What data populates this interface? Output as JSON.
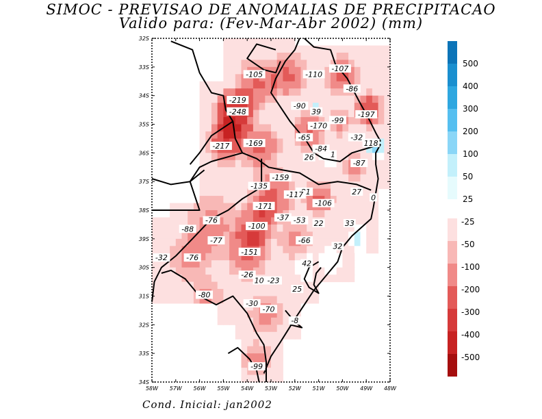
{
  "title_line1": "SIMOC - PREVISAO DE ANOMALIAS DE PRECIPITACAO",
  "title_line2": "Valido para: (Fev-Mar-Abr 2002) (mm)",
  "footer": "Cond. Inicial: jan2002",
  "lat_labels": [
    "32S",
    "33S",
    "34S",
    "35S",
    "36S",
    "37S",
    "38S",
    "39S",
    "30S",
    "31S",
    "32S",
    "33S",
    "34S"
  ],
  "lon_labels": [
    "58W",
    "57W",
    "56W",
    "55W",
    "54W",
    "53W",
    "52W",
    "51W",
    "50W",
    "49W",
    "48W"
  ],
  "colorbar_positive": [
    "500",
    "400",
    "300",
    "200",
    "100",
    "50",
    "25"
  ],
  "colorbar_negative": [
    "-25",
    "-50",
    "-100",
    "-200",
    "-300",
    "-400",
    "-500"
  ],
  "colors": {
    "pos": [
      "#0c74b8",
      "#1a8fcf",
      "#2ea7e0",
      "#55bff0",
      "#8ad6f7",
      "#c3f0fb"
    ],
    "neg": [
      "#fde0e0",
      "#f8b8b6",
      "#f08a88",
      "#e35a58",
      "#d63a3a",
      "#c72222",
      "#a50e0e"
    ]
  },
  "values": [
    {
      "text": "-105",
      "lon": 53.7,
      "lat": 23.3
    },
    {
      "text": "-110",
      "lon": 51.2,
      "lat": 23.3
    },
    {
      "text": "-107",
      "lon": 50.1,
      "lat": 23.1
    },
    {
      "text": "-86",
      "lon": 49.6,
      "lat": 23.8
    },
    {
      "text": "-219",
      "lon": 54.4,
      "lat": 24.2
    },
    {
      "text": "-248",
      "lon": 54.4,
      "lat": 24.6
    },
    {
      "text": "-90",
      "lon": 51.8,
      "lat": 24.4
    },
    {
      "text": "39",
      "lon": 51.1,
      "lat": 24.6
    },
    {
      "text": "-197",
      "lon": 49.0,
      "lat": 24.7
    },
    {
      "text": "-99",
      "lon": 50.2,
      "lat": 24.9
    },
    {
      "text": "-170",
      "lon": 51.0,
      "lat": 25.1
    },
    {
      "text": "-65",
      "lon": 51.6,
      "lat": 25.5
    },
    {
      "text": "-32",
      "lon": 49.4,
      "lat": 25.5
    },
    {
      "text": "118",
      "lon": 48.8,
      "lat": 25.7
    },
    {
      "text": "-217",
      "lon": 55.1,
      "lat": 25.8
    },
    {
      "text": "-169",
      "lon": 53.7,
      "lat": 25.7
    },
    {
      "text": "-84",
      "lon": 50.9,
      "lat": 25.9
    },
    {
      "text": "26",
      "lon": 51.4,
      "lat": 26.2
    },
    {
      "text": "1",
      "lon": 50.4,
      "lat": 26.1
    },
    {
      "text": "-87",
      "lon": 49.3,
      "lat": 26.4
    },
    {
      "text": "-159",
      "lon": 52.6,
      "lat": 26.9
    },
    {
      "text": "-135",
      "lon": 53.5,
      "lat": 27.2
    },
    {
      "text": "-81",
      "lon": 51.6,
      "lat": 27.4
    },
    {
      "text": "-117",
      "lon": 52.0,
      "lat": 27.5
    },
    {
      "text": "27",
      "lon": 49.4,
      "lat": 27.4
    },
    {
      "text": "0",
      "lon": 48.7,
      "lat": 27.6
    },
    {
      "text": "-106",
      "lon": 50.8,
      "lat": 27.8
    },
    {
      "text": "-171",
      "lon": 53.3,
      "lat": 27.9
    },
    {
      "text": "-76",
      "lon": 55.5,
      "lat": 28.4
    },
    {
      "text": "-37",
      "lon": 52.5,
      "lat": 28.3
    },
    {
      "text": "-53",
      "lon": 51.8,
      "lat": 28.4
    },
    {
      "text": "22",
      "lon": 51.0,
      "lat": 28.5
    },
    {
      "text": "33",
      "lon": 49.7,
      "lat": 28.5
    },
    {
      "text": "-88",
      "lon": 56.5,
      "lat": 28.7
    },
    {
      "text": "-100",
      "lon": 53.6,
      "lat": 28.6
    },
    {
      "text": "-77",
      "lon": 55.3,
      "lat": 29.1
    },
    {
      "text": "-66",
      "lon": 51.6,
      "lat": 29.1
    },
    {
      "text": "32",
      "lon": 50.2,
      "lat": 29.3
    },
    {
      "text": "-151",
      "lon": 53.9,
      "lat": 29.5
    },
    {
      "text": "-32",
      "lon": 57.6,
      "lat": 29.7
    },
    {
      "text": "-76",
      "lon": 56.3,
      "lat": 29.7
    },
    {
      "text": "42",
      "lon": 51.5,
      "lat": 29.9
    },
    {
      "text": "-26",
      "lon": 54.0,
      "lat": 30.3
    },
    {
      "text": "10",
      "lon": 53.5,
      "lat": 30.5
    },
    {
      "text": "-23",
      "lon": 52.9,
      "lat": 30.5
    },
    {
      "text": "25",
      "lon": 51.9,
      "lat": 30.8
    },
    {
      "text": "-80",
      "lon": 55.8,
      "lat": 31.0
    },
    {
      "text": "-30",
      "lon": 53.8,
      "lat": 31.3
    },
    {
      "text": "-70",
      "lon": 53.1,
      "lat": 31.5
    },
    {
      "text": "-8",
      "lon": 52.0,
      "lat": 31.9
    },
    {
      "text": "-99",
      "lon": 53.6,
      "lat": 33.5
    }
  ]
}
